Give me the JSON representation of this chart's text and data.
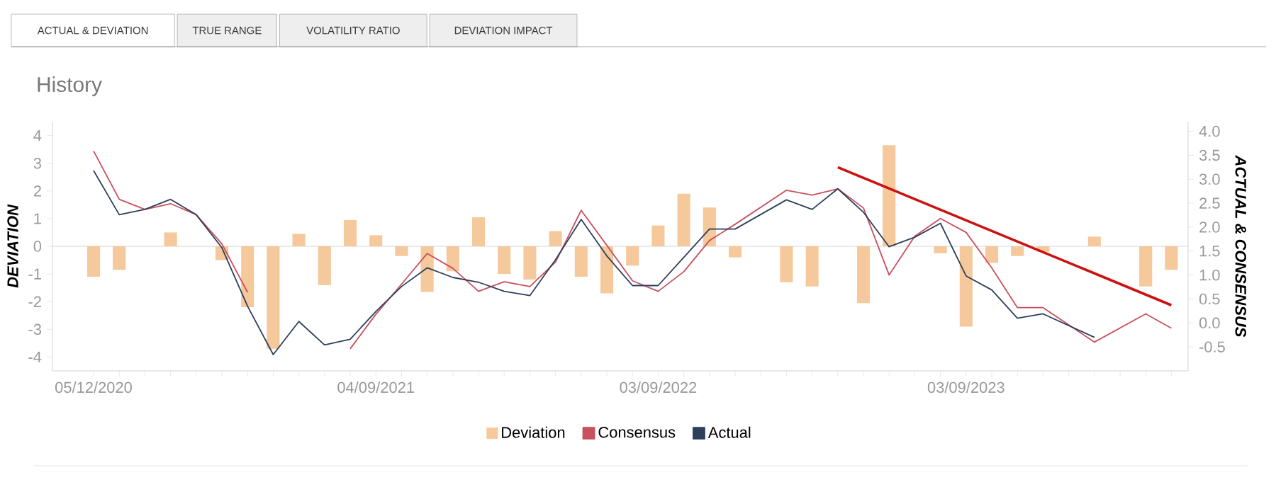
{
  "chart_data": {
    "type": "bar",
    "title": "History",
    "annotations": [
      "ACTUAL & DEVIATION",
      "TRUE RANGE",
      "VOLATILITY RATIO",
      "DEVIATION IMPACT"
    ],
    "categories": [
      "05/12/2020",
      null,
      null,
      null,
      null,
      null,
      null,
      null,
      null,
      null,
      null,
      "04/09/2021",
      null,
      null,
      null,
      null,
      null,
      null,
      null,
      null,
      null,
      null,
      "03/09/2022",
      null,
      null,
      null,
      null,
      null,
      null,
      null,
      null,
      null,
      null,
      null,
      "03/09/2023",
      null,
      null,
      null,
      null,
      null,
      null,
      null,
      null
    ],
    "series": [
      {
        "name": "Deviation",
        "color": "#f5c99b",
        "values": [
          -1.1,
          -0.85,
          null,
          0.5,
          null,
          -0.5,
          -2.2,
          -3.7,
          0.45,
          -1.4,
          0.95,
          0.4,
          -0.35,
          -1.65,
          -0.9,
          1.05,
          -1.0,
          -1.2,
          0.55,
          -1.1,
          -1.7,
          -0.7,
          0.75,
          1.9,
          1.4,
          -0.4,
          null,
          -1.3,
          -1.45,
          null,
          -2.05,
          3.65,
          null,
          -0.25,
          -2.9,
          -0.6,
          -0.35,
          -0.2,
          null,
          0.35,
          null,
          -1.45,
          -0.85
        ]
      },
      {
        "name": "Consensus",
        "type": "line",
        "axis": "y2",
        "color": "#c9505f",
        "values": [
          3.59,
          2.58,
          2.37,
          2.49,
          2.26,
          1.65,
          0.64,
          null,
          null,
          null,
          -0.54,
          0.18,
          0.81,
          1.45,
          1.14,
          0.66,
          0.86,
          0.76,
          1.27,
          2.35,
          1.62,
          0.88,
          0.66,
          1.07,
          1.72,
          2.06,
          null,
          2.77,
          2.67,
          2.8,
          2.4,
          1.0,
          1.81,
          2.18,
          1.89,
          1.15,
          0.32,
          0.32,
          null,
          -0.4,
          null,
          0.19,
          -0.11
        ]
      },
      {
        "name": "Actual",
        "type": "line",
        "axis": "y2",
        "color": "#2e3f5a",
        "values": [
          3.18,
          2.26,
          2.37,
          2.58,
          2.26,
          1.57,
          0.35,
          -0.66,
          0.03,
          -0.46,
          -0.34,
          0.24,
          0.76,
          1.15,
          0.95,
          0.85,
          0.66,
          0.57,
          1.32,
          2.16,
          1.4,
          0.78,
          0.78,
          1.37,
          1.96,
          1.96,
          null,
          2.57,
          2.37,
          2.8,
          2.31,
          1.59,
          1.79,
          2.08,
          0.98,
          0.69,
          0.1,
          0.19,
          null,
          -0.3,
          null,
          null,
          null
        ]
      },
      {
        "type": "line",
        "axis": "y2",
        "color": "#cc1111",
        "values": [
          null,
          null,
          null,
          null,
          null,
          null,
          null,
          null,
          null,
          null,
          null,
          null,
          null,
          null,
          null,
          null,
          null,
          null,
          null,
          null,
          null,
          null,
          null,
          null,
          null,
          null,
          null,
          null,
          null,
          3.25,
          null,
          null,
          null,
          null,
          null,
          null,
          null,
          null,
          null,
          null,
          null,
          null,
          0.37
        ]
      }
    ],
    "ylabel": "DEVIATION",
    "y2label": "ACTUAL & CONSENSUS",
    "ylim": [
      -4.5,
      4.5
    ],
    "yticks": [
      -4,
      -3,
      -2,
      -1,
      0,
      1,
      2,
      3,
      4
    ],
    "y2lim": [
      -1,
      4.2
    ],
    "y2ticks": [
      {
        "value": -0.5,
        "label": "-0.5"
      },
      {
        "value": 0,
        "label": "0.0"
      },
      0.5,
      {
        "value": 1,
        "label": "1.0"
      },
      1.5,
      {
        "value": 2,
        "label": "2.0"
      },
      2.5,
      {
        "value": 3,
        "label": "3.0"
      },
      3.5,
      {
        "value": 4,
        "label": "4.0"
      }
    ],
    "ref_lines": [
      {
        "axis": "y",
        "value": 0,
        "color": "#cccccc"
      }
    ],
    "legend": "bottom",
    "grid": false
  }
}
